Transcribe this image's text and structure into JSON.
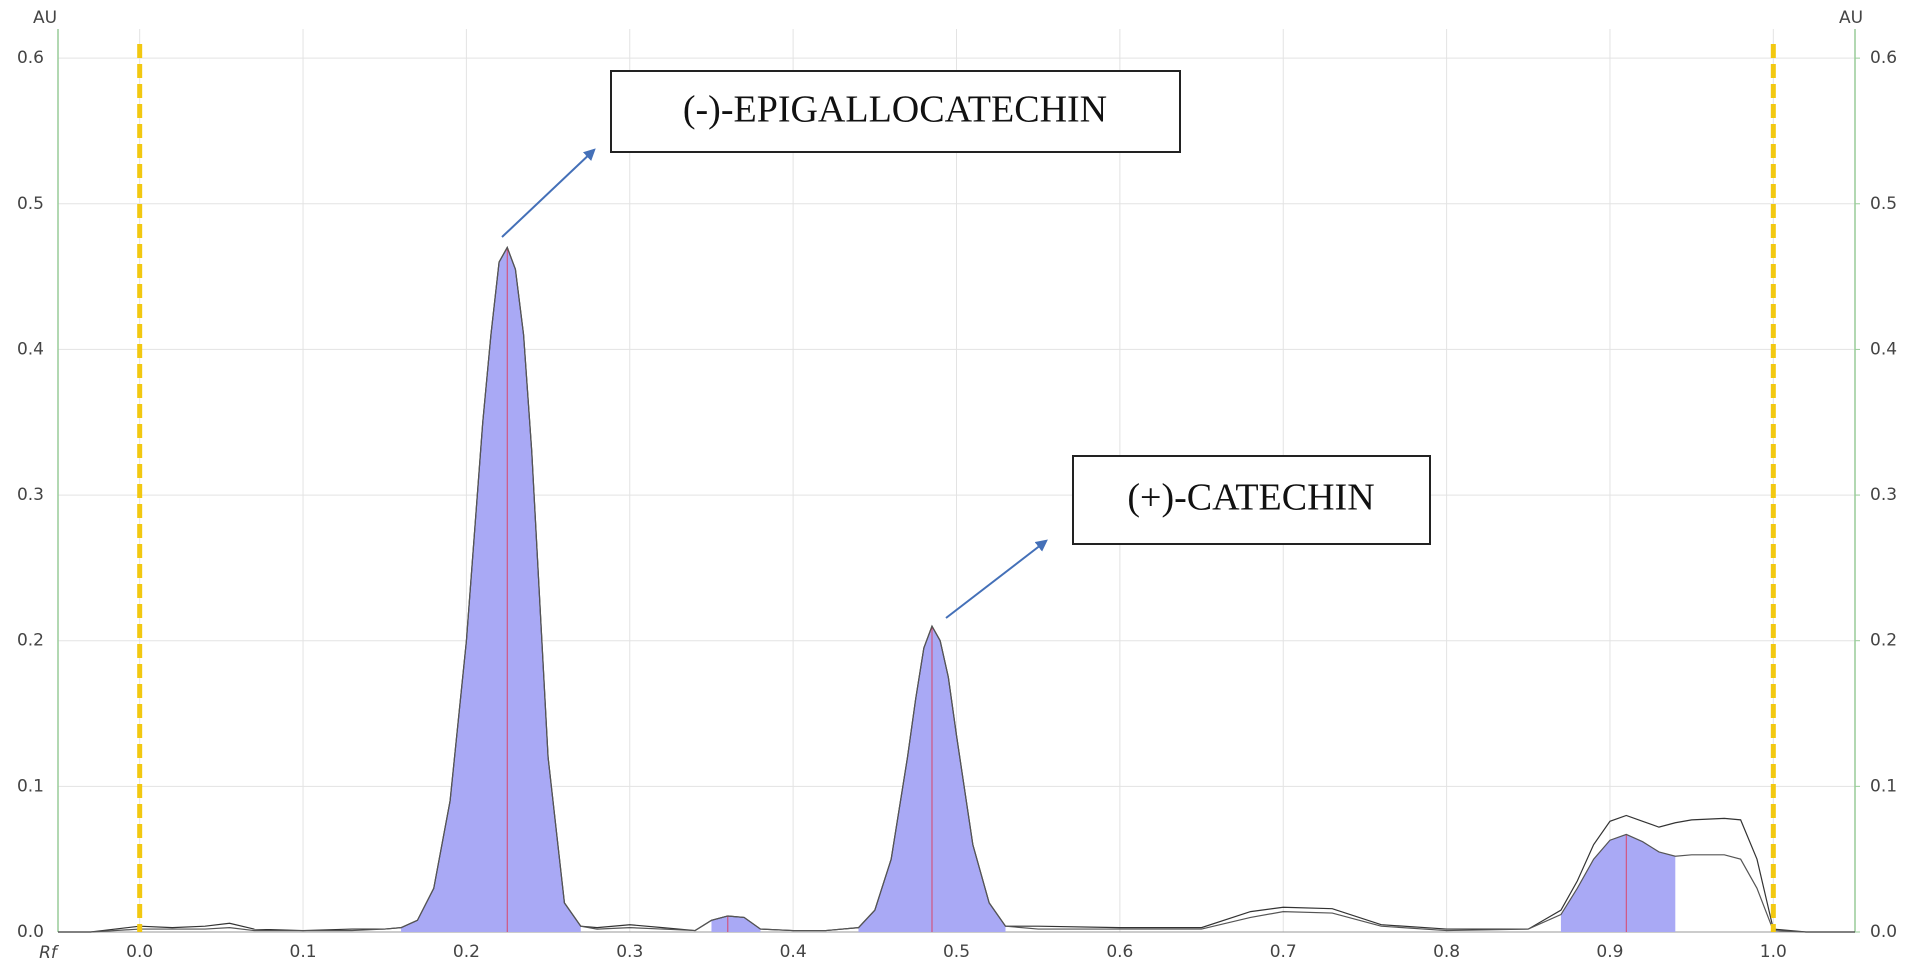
{
  "chart_data": {
    "type": "line",
    "y_label": "AU",
    "y2_label": "AU",
    "x_label": "Rf",
    "annotations": [
      "(-)-EPIGALLOCATECHIN",
      "(+)-CATECHIN"
    ],
    "xlim": [
      -0.05,
      1.05
    ],
    "ylim": [
      0,
      0.62
    ],
    "y2lim": [
      0,
      0.62
    ],
    "xticks": [
      {
        "value": 0,
        "label": "0.0"
      },
      0.1,
      0.2,
      0.3,
      0.4,
      0.5,
      0.6,
      0.7,
      0.8,
      0.9,
      {
        "value": 1,
        "label": "1.0"
      }
    ],
    "yticks": [
      {
        "value": 0,
        "label": "0.0"
      },
      0.1,
      0.2,
      0.3,
      0.4,
      0.5,
      0.6
    ],
    "y2ticks": [
      {
        "value": 0,
        "label": "0.0"
      },
      0.1,
      0.2,
      0.3,
      0.4,
      0.5,
      0.6
    ],
    "grid": true,
    "vlines": {
      "values": [
        0,
        1
      ],
      "color": "#f2c811"
    },
    "fill_color": "#a9a9f5",
    "peak_line_color": "#d9456a",
    "x": [
      -0.05,
      -0.03,
      0.0,
      0.02,
      0.04,
      0.055,
      0.07,
      0.1,
      0.13,
      0.15,
      0.16,
      0.17,
      0.18,
      0.19,
      0.2,
      0.21,
      0.215,
      0.22,
      0.225,
      0.23,
      0.235,
      0.24,
      0.25,
      0.26,
      0.27,
      0.28,
      0.3,
      0.32,
      0.34,
      0.35,
      0.36,
      0.37,
      0.38,
      0.4,
      0.42,
      0.44,
      0.45,
      0.46,
      0.47,
      0.475,
      0.48,
      0.485,
      0.49,
      0.495,
      0.5,
      0.51,
      0.52,
      0.53,
      0.55,
      0.6,
      0.65,
      0.68,
      0.7,
      0.73,
      0.76,
      0.8,
      0.85,
      0.87,
      0.88,
      0.89,
      0.9,
      0.91,
      0.92,
      0.93,
      0.94,
      0.95,
      0.97,
      0.98,
      0.99,
      1.0,
      1.02,
      1.05
    ],
    "series": [
      {
        "color": "#333333",
        "values": [
          0.0,
          0.0,
          0.004,
          0.003,
          0.004,
          0.006,
          0.002,
          0.001,
          0.002,
          0.002,
          0.003,
          0.008,
          0.03,
          0.09,
          0.2,
          0.35,
          0.41,
          0.46,
          0.47,
          0.455,
          0.41,
          0.33,
          0.12,
          0.02,
          0.004,
          0.003,
          0.005,
          0.003,
          0.001,
          0.008,
          0.011,
          0.01,
          0.002,
          0.001,
          0.001,
          0.003,
          0.015,
          0.05,
          0.12,
          0.16,
          0.195,
          0.21,
          0.2,
          0.175,
          0.135,
          0.06,
          0.02,
          0.004,
          0.004,
          0.003,
          0.003,
          0.014,
          0.017,
          0.016,
          0.005,
          0.002,
          0.002,
          0.015,
          0.035,
          0.06,
          0.076,
          0.08,
          0.076,
          0.072,
          0.075,
          0.077,
          0.078,
          0.077,
          0.05,
          0.002,
          0.0,
          0.0
        ]
      },
      {
        "color": "#555555",
        "values": [
          0.0,
          0.0,
          0.002,
          0.002,
          0.002,
          0.003,
          0.001,
          0.001,
          0.001,
          0.002,
          0.003,
          0.008,
          0.03,
          0.09,
          0.2,
          0.35,
          0.41,
          0.46,
          0.47,
          0.455,
          0.41,
          0.33,
          0.12,
          0.02,
          0.004,
          0.002,
          0.003,
          0.002,
          0.001,
          0.008,
          0.011,
          0.01,
          0.002,
          0.001,
          0.001,
          0.003,
          0.015,
          0.05,
          0.12,
          0.16,
          0.195,
          0.21,
          0.2,
          0.175,
          0.135,
          0.06,
          0.02,
          0.004,
          0.002,
          0.002,
          0.002,
          0.01,
          0.014,
          0.013,
          0.004,
          0.001,
          0.002,
          0.012,
          0.03,
          0.05,
          0.063,
          0.067,
          0.062,
          0.055,
          0.052,
          0.053,
          0.053,
          0.05,
          0.03,
          0.001,
          0.0,
          0.0
        ]
      }
    ],
    "peaks": [
      {
        "start": 0.16,
        "end": 0.27,
        "rf": 0.225
      },
      {
        "start": 0.35,
        "end": 0.38,
        "rf": 0.36
      },
      {
        "start": 0.44,
        "end": 0.53,
        "rf": 0.485
      },
      {
        "start": 0.87,
        "end": 0.94,
        "rf": 0.91
      }
    ]
  }
}
